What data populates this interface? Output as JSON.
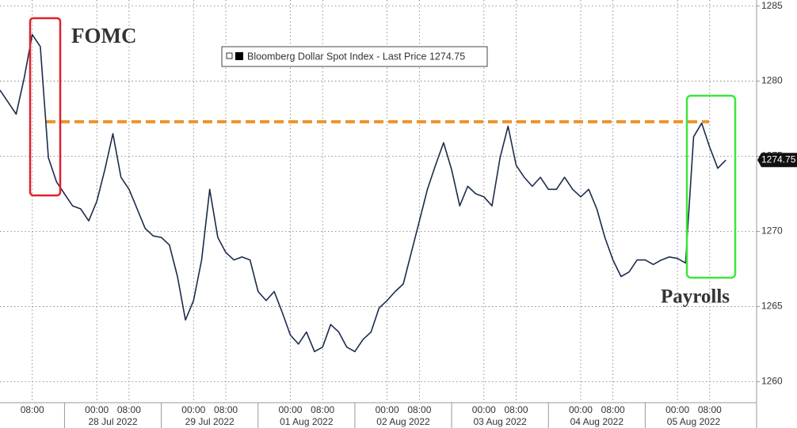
{
  "chart_data": {
    "type": "line",
    "series": [
      {
        "name": "Bloomberg Dollar Spot Index - Last Price 1274.75",
        "color": "#1c2c4c",
        "values": [
          1279.4,
          1278.6,
          1277.8,
          1280.2,
          1283.1,
          1282.3,
          1274.9,
          1273.3,
          1272.5,
          1271.7,
          1271.5,
          1270.7,
          1272.0,
          1274.1,
          1276.5,
          1273.6,
          1272.8,
          1271.5,
          1270.2,
          1269.7,
          1269.6,
          1269.1,
          1267.0,
          1264.1,
          1265.4,
          1268.1,
          1272.8,
          1269.6,
          1268.6,
          1268.1,
          1268.3,
          1268.1,
          1266.0,
          1265.4,
          1266.0,
          1264.6,
          1263.1,
          1262.5,
          1263.3,
          1262.0,
          1262.3,
          1263.8,
          1263.3,
          1262.3,
          1262.0,
          1262.8,
          1263.3,
          1264.9,
          1265.4,
          1266.0,
          1266.5,
          1268.6,
          1270.7,
          1272.8,
          1274.4,
          1275.9,
          1274.1,
          1271.7,
          1273.0,
          1272.5,
          1272.3,
          1271.7,
          1274.9,
          1277.0,
          1274.4,
          1273.6,
          1273.0,
          1273.6,
          1272.8,
          1272.8,
          1273.6,
          1272.8,
          1272.3,
          1272.8,
          1271.5,
          1269.6,
          1268.1,
          1267.0,
          1267.3,
          1268.1,
          1268.1,
          1267.8,
          1268.1,
          1268.3,
          1268.2,
          1267.9,
          1276.3,
          1277.2,
          1275.6,
          1274.2,
          1274.75,
          null,
          null,
          null
        ]
      }
    ],
    "categories": [
      null,
      null,
      null,
      null,
      "08:00",
      null,
      null,
      null,
      null,
      null,
      null,
      null,
      "00:00",
      null,
      null,
      null,
      "08:00",
      null,
      null,
      null,
      null,
      null,
      null,
      null,
      "00:00",
      null,
      null,
      null,
      "08:00",
      null,
      null,
      null,
      null,
      null,
      null,
      null,
      "00:00",
      null,
      null,
      null,
      "08:00",
      null,
      null,
      null,
      null,
      null,
      null,
      null,
      "00:00",
      null,
      null,
      null,
      "08:00",
      null,
      null,
      null,
      null,
      null,
      null,
      null,
      "00:00",
      null,
      null,
      null,
      "08:00",
      null,
      null,
      null,
      null,
      null,
      null,
      null,
      "00:00",
      null,
      null,
      null,
      "08:00",
      null,
      null,
      null,
      null,
      null,
      null,
      null,
      "00:00",
      null,
      null,
      null,
      "08:00",
      null,
      null,
      null,
      null,
      null
    ],
    "category_dates": [
      null,
      null,
      null,
      null,
      null,
      null,
      null,
      null,
      null,
      null,
      null,
      null,
      null,
      null,
      "28 Jul 2022",
      null,
      null,
      null,
      null,
      null,
      null,
      null,
      null,
      null,
      null,
      null,
      "29 Jul 2022",
      null,
      null,
      null,
      null,
      null,
      null,
      null,
      null,
      null,
      null,
      null,
      "01 Aug 2022",
      null,
      null,
      null,
      null,
      null,
      null,
      null,
      null,
      null,
      null,
      null,
      "02 Aug 2022",
      null,
      null,
      null,
      null,
      null,
      null,
      null,
      null,
      null,
      null,
      null,
      "03 Aug 2022",
      null,
      null,
      null,
      null,
      null,
      null,
      null,
      null,
      null,
      null,
      null,
      "04 Aug 2022",
      null,
      null,
      null,
      null,
      null,
      null,
      null,
      null,
      null,
      null,
      null,
      "05 Aug 2022",
      null,
      null,
      null,
      null,
      null,
      null,
      null
    ],
    "ylim": [
      1258.6,
      1285.4
    ],
    "yticks": [
      1260,
      1265,
      1270,
      1275,
      1280,
      1285
    ],
    "grid": true,
    "reference_line": {
      "value": 1277.3,
      "color": "#f0922a"
    },
    "annotations": [
      {
        "text": "FOMC",
        "color": "#e0202e"
      },
      {
        "text": "Payrolls",
        "color": "#3ee63e"
      }
    ]
  }
}
